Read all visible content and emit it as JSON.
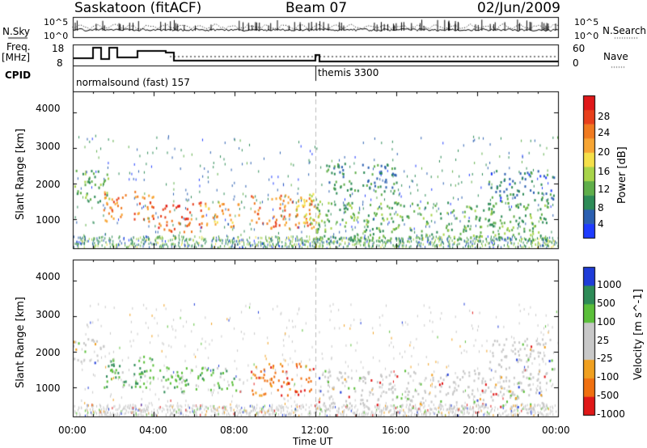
{
  "header": {
    "station": "Saskatoon (fitACF)",
    "beam": "Beam 07",
    "date": "02/Jun/2009"
  },
  "top_panels": {
    "nsky_label": "N.Sky",
    "nsky_ticks": [
      "10^5",
      "10^0"
    ],
    "nsearch_label": "N.Search",
    "nsearch_ticks": [
      "10^5",
      "10^0"
    ],
    "freq_label_1": "Freq.",
    "freq_label_2": "[MHz]",
    "freq_ticks": [
      "18",
      "8"
    ],
    "nave_label": "Nave",
    "nave_ticks": [
      "60",
      "0"
    ],
    "cpid_label": "CPID",
    "cpid_segments": [
      {
        "text": "normalsound (fast) 157",
        "start_hour": 0
      },
      {
        "text": "themis 3300",
        "start_hour": 12
      }
    ]
  },
  "chart_data": [
    {
      "type": "heatmap",
      "title": "",
      "xlabel": "Time UT",
      "ylabel": "Slant Range [km]",
      "x_ticks": [
        "00:00",
        "04:00",
        "08:00",
        "12:00",
        "16:00",
        "20:00",
        "00:00"
      ],
      "xlim_hours": [
        0,
        24
      ],
      "y_ticks": [
        1000,
        2000,
        3000,
        4000
      ],
      "ylim": [
        180,
        4600
      ],
      "colorbar_label": "Power [dB]",
      "colorbar_ticks": [
        4,
        8,
        12,
        16,
        20,
        24,
        28
      ],
      "colorbar_range": [
        0,
        30
      ],
      "colorbar_colors": [
        "#1f3cff",
        "#2b5fb0",
        "#2e8b57",
        "#5fae4a",
        "#a8d44a",
        "#f5e04a",
        "#f7a534",
        "#f07a20",
        "#e8401c",
        "#e0181a"
      ],
      "regions": [
        {
          "t0": 0.0,
          "t1": 1.8,
          "r0": 1500,
          "r1": 2400,
          "level": 10
        },
        {
          "t0": 1.5,
          "t1": 4.0,
          "r0": 950,
          "r1": 1800,
          "level": 22
        },
        {
          "t0": 4.2,
          "t1": 6.5,
          "r0": 650,
          "r1": 1500,
          "level": 24
        },
        {
          "t0": 6.5,
          "t1": 8.2,
          "r0": 800,
          "r1": 1500,
          "level": 20
        },
        {
          "t0": 8.8,
          "t1": 11.9,
          "r0": 750,
          "r1": 1700,
          "level": 22
        },
        {
          "t0": 11.0,
          "t1": 12.2,
          "r0": 900,
          "r1": 1900,
          "level": 16
        },
        {
          "t0": 12.0,
          "t1": 23.5,
          "r0": 400,
          "r1": 1500,
          "level": 10
        },
        {
          "t0": 12.5,
          "t1": 16.0,
          "r0": 1700,
          "r1": 2600,
          "level": 8
        },
        {
          "t0": 20.5,
          "t1": 23.8,
          "r0": 1500,
          "r1": 2400,
          "level": 6
        }
      ]
    },
    {
      "type": "heatmap",
      "title": "",
      "xlabel": "Time UT",
      "ylabel": "Slant Range [km]",
      "x_ticks": [
        "00:00",
        "04:00",
        "08:00",
        "12:00",
        "16:00",
        "20:00",
        "00:00"
      ],
      "xlim_hours": [
        0,
        24
      ],
      "y_ticks": [
        1000,
        2000,
        3000,
        4000
      ],
      "ylim": [
        180,
        4600
      ],
      "colorbar_label": "Velocity [m s^-1]",
      "colorbar_ticks": [
        "1000",
        "500",
        "100",
        "25",
        "-25",
        "-100",
        "-500",
        "-1000"
      ],
      "colorbar_colors": [
        "#1f3cd8",
        "#2e8b57",
        "#5bbf3a",
        "#c8c8c8",
        "#c8c8c8",
        "#f0a020",
        "#f07010",
        "#e01818"
      ],
      "regions": [
        {
          "t0": 0.0,
          "t1": 1.5,
          "r0": 1700,
          "r1": 2400,
          "class": "low"
        },
        {
          "t0": 1.5,
          "t1": 4.0,
          "r0": 1000,
          "r1": 1900,
          "class": "pos"
        },
        {
          "t0": 4.2,
          "t1": 8.5,
          "r0": 900,
          "r1": 1600,
          "class": "pos"
        },
        {
          "t0": 8.8,
          "t1": 11.9,
          "r0": 800,
          "r1": 1700,
          "class": "neg"
        },
        {
          "t0": 12.0,
          "t1": 23.5,
          "r0": 400,
          "r1": 1500,
          "class": "low"
        },
        {
          "t0": 20.5,
          "t1": 23.8,
          "r0": 1500,
          "r1": 2400,
          "class": "low"
        }
      ]
    }
  ]
}
